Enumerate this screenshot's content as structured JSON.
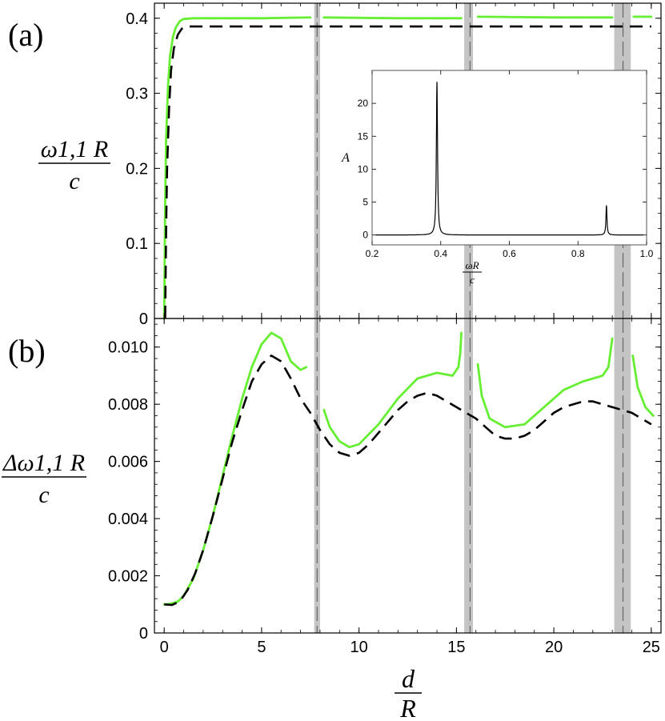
{
  "chart_data": [
    {
      "panel_label": "(a)",
      "type": "line",
      "ylabel": {
        "numerator": "ω1,1 R",
        "denominator": "c"
      },
      "xlim": [
        -0.5,
        25.5
      ],
      "ylim": [
        0,
        0.42
      ],
      "yticks": [
        "0",
        "0.1",
        "0.2",
        "0.3",
        "0.4"
      ],
      "yticks_num": [
        0,
        0.1,
        0.2,
        0.3,
        0.4
      ],
      "shaded_bands": [
        [
          7.7,
          8.0
        ],
        [
          15.4,
          15.85
        ],
        [
          23.1,
          23.95
        ]
      ],
      "dashed_vlines": [
        7.85,
        15.7,
        23.55
      ],
      "series": [
        {
          "style": "solid",
          "color": "#66ee33",
          "segments": [
            [
              [
                0,
                0
              ],
              [
                0.05,
                0.15
              ],
              [
                0.1,
                0.24
              ],
              [
                0.2,
                0.31
              ],
              [
                0.3,
                0.35
              ],
              [
                0.45,
                0.375
              ],
              [
                0.6,
                0.388
              ],
              [
                0.8,
                0.396
              ],
              [
                1.0,
                0.399
              ],
              [
                1.5,
                0.4
              ],
              [
                3,
                0.4
              ],
              [
                5,
                0.4
              ],
              [
                7.5,
                0.401
              ]
            ],
            [
              [
                8.2,
                0.401
              ],
              [
                12,
                0.4
              ],
              [
                15.25,
                0.4
              ]
            ],
            [
              [
                16.1,
                0.402
              ],
              [
                20,
                0.401
              ],
              [
                23.0,
                0.401
              ]
            ],
            [
              [
                24.1,
                0.402
              ],
              [
                25,
                0.402
              ]
            ]
          ]
        },
        {
          "style": "dashed",
          "color": "#000000",
          "segments": [
            [
              [
                0.05,
                0
              ],
              [
                0.1,
                0.12
              ],
              [
                0.15,
                0.2
              ],
              [
                0.25,
                0.28
              ],
              [
                0.35,
                0.33
              ],
              [
                0.5,
                0.36
              ],
              [
                0.7,
                0.378
              ],
              [
                0.9,
                0.386
              ],
              [
                1.2,
                0.389
              ],
              [
                2,
                0.389
              ],
              [
                25,
                0.389
              ]
            ]
          ]
        }
      ],
      "inset": {
        "type": "line",
        "xlabel": {
          "numerator": "ωR",
          "denominator": "c"
        },
        "ylabel": "A",
        "xlim": [
          0.2,
          1.0
        ],
        "ylim": [
          -1.5,
          25
        ],
        "xticks": [
          "0.2",
          "0.4",
          "0.6",
          "0.8",
          "1.0"
        ],
        "xticks_num": [
          0.2,
          0.4,
          0.6,
          0.8,
          1.0
        ],
        "yticks": [
          "0",
          "5",
          "10",
          "15",
          "20"
        ],
        "yticks_num": [
          0,
          5,
          10,
          15,
          20
        ],
        "peaks": [
          {
            "x": 0.389,
            "height": 23.4,
            "width": 0.004
          },
          {
            "x": 0.883,
            "height": 4.5,
            "width": 0.0035
          }
        ]
      }
    },
    {
      "panel_label": "(b)",
      "type": "line",
      "xlabel": {
        "numerator": "d",
        "denominator": "R"
      },
      "ylabel": {
        "numerator": "Δω1,1 R",
        "denominator": "c"
      },
      "xlim": [
        -0.5,
        25.5
      ],
      "ylim": [
        0,
        0.011
      ],
      "xticks": [
        "0",
        "5",
        "10",
        "15",
        "20",
        "25"
      ],
      "xticks_num": [
        0,
        5,
        10,
        15,
        20,
        25
      ],
      "yticks": [
        "0",
        "0.002",
        "0.004",
        "0.006",
        "0.008",
        "0.010"
      ],
      "yticks_num": [
        0,
        0.002,
        0.004,
        0.006,
        0.008,
        0.01
      ],
      "shaded_bands": [
        [
          7.7,
          8.0
        ],
        [
          15.4,
          15.85
        ],
        [
          23.1,
          23.95
        ]
      ],
      "dashed_vlines": [
        7.85,
        15.7,
        23.55
      ],
      "series": [
        {
          "style": "solid",
          "color": "#66ee33",
          "segments": [
            [
              [
                0,
                0.001
              ],
              [
                0.3,
                0.00102
              ],
              [
                0.7,
                0.0011
              ],
              [
                1,
                0.0013
              ],
              [
                1.5,
                0.0019
              ],
              [
                2,
                0.0029
              ],
              [
                2.5,
                0.0041
              ],
              [
                3,
                0.0055
              ],
              [
                3.5,
                0.0069
              ],
              [
                4,
                0.0082
              ],
              [
                4.5,
                0.0093
              ],
              [
                5,
                0.0101
              ],
              [
                5.5,
                0.0105
              ],
              [
                6,
                0.0103
              ],
              [
                6.5,
                0.0095
              ],
              [
                7,
                0.0092
              ],
              [
                7.3,
                0.0093
              ]
            ],
            [
              [
                8.2,
                0.0078
              ],
              [
                8.5,
                0.0072
              ],
              [
                9,
                0.0067
              ],
              [
                9.5,
                0.0065
              ],
              [
                10,
                0.0066
              ],
              [
                11,
                0.0073
              ],
              [
                12,
                0.0082
              ],
              [
                13,
                0.0089
              ],
              [
                14,
                0.0091
              ],
              [
                14.8,
                0.009
              ],
              [
                15.1,
                0.0093
              ],
              [
                15.2,
                0.0098
              ],
              [
                15.25,
                0.0105
              ]
            ],
            [
              [
                16.1,
                0.0094
              ],
              [
                16.3,
                0.0083
              ],
              [
                16.7,
                0.0075
              ],
              [
                17.5,
                0.0072
              ],
              [
                18.5,
                0.0073
              ],
              [
                19.5,
                0.0079
              ],
              [
                20.5,
                0.0085
              ],
              [
                21.5,
                0.0088
              ],
              [
                22.5,
                0.009
              ],
              [
                22.8,
                0.0093
              ],
              [
                23.0,
                0.0103
              ]
            ],
            [
              [
                24.05,
                0.0097
              ],
              [
                24.3,
                0.0086
              ],
              [
                24.7,
                0.0079
              ],
              [
                25.1,
                0.0076
              ]
            ]
          ]
        },
        {
          "style": "dashed",
          "color": "#000000",
          "segments": [
            [
              [
                0,
                0.001
              ],
              [
                0.4,
                0.00098
              ],
              [
                0.8,
                0.0011
              ],
              [
                1.2,
                0.0015
              ],
              [
                1.6,
                0.0021
              ],
              [
                2,
                0.0029
              ],
              [
                2.5,
                0.0041
              ],
              [
                3,
                0.0054
              ],
              [
                3.5,
                0.0067
              ],
              [
                4,
                0.0078
              ],
              [
                4.5,
                0.0088
              ],
              [
                5,
                0.0094
              ],
              [
                5.5,
                0.0097
              ],
              [
                6,
                0.0095
              ],
              [
                6.5,
                0.0089
              ],
              [
                7,
                0.0082
              ],
              [
                7.5,
                0.0077
              ],
              [
                8,
                0.0071
              ],
              [
                8.5,
                0.0066
              ],
              [
                9,
                0.0063
              ],
              [
                9.5,
                0.0062
              ],
              [
                10,
                0.0063
              ],
              [
                10.5,
                0.0066
              ],
              [
                11,
                0.007
              ],
              [
                11.5,
                0.0074
              ],
              [
                12,
                0.0078
              ],
              [
                12.5,
                0.0081
              ],
              [
                13,
                0.0083
              ],
              [
                13.5,
                0.0084
              ],
              [
                14,
                0.0083
              ],
              [
                14.5,
                0.0081
              ],
              [
                15,
                0.0079
              ],
              [
                15.5,
                0.0077
              ],
              [
                16,
                0.0075
              ],
              [
                16.5,
                0.0072
              ],
              [
                17,
                0.0069
              ],
              [
                17.5,
                0.0068
              ],
              [
                18,
                0.0068
              ],
              [
                18.5,
                0.0069
              ],
              [
                19,
                0.0071
              ],
              [
                19.5,
                0.0074
              ],
              [
                20,
                0.0077
              ],
              [
                20.5,
                0.0079
              ],
              [
                21,
                0.008
              ],
              [
                21.5,
                0.0081
              ],
              [
                22,
                0.0081
              ],
              [
                22.5,
                0.008
              ],
              [
                23,
                0.0079
              ],
              [
                23.5,
                0.0078
              ],
              [
                24,
                0.0077
              ],
              [
                24.5,
                0.0075
              ],
              [
                25,
                0.0073
              ]
            ]
          ]
        }
      ]
    }
  ]
}
